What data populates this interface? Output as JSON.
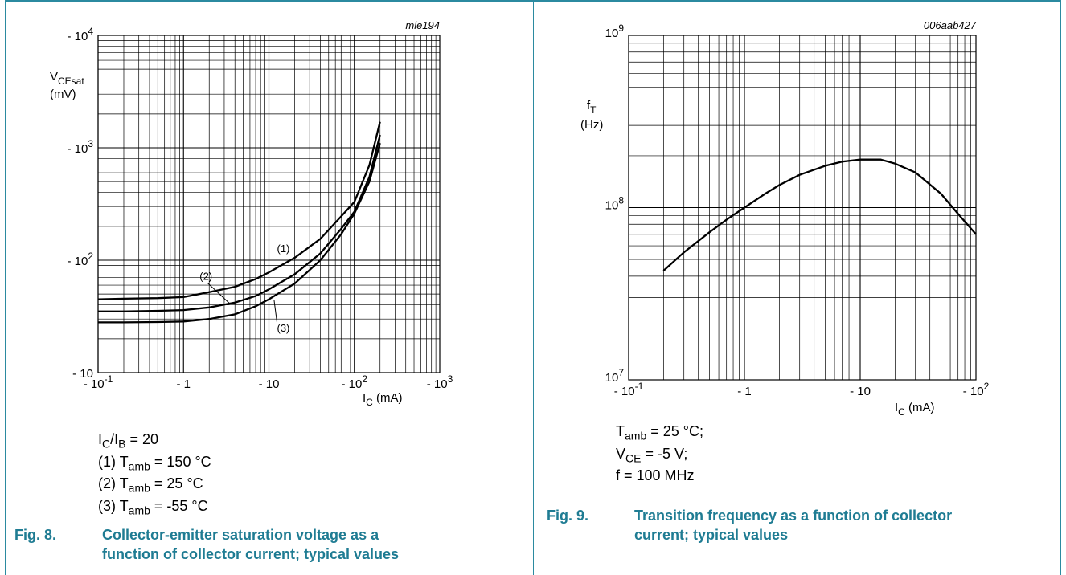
{
  "chart_data": [
    {
      "type": "line",
      "code": "mle194",
      "x_scale": "log",
      "y_scale": "log",
      "xlim": [
        -0.1,
        -1000
      ],
      "ylim": [
        -10,
        -10000
      ],
      "x_ticks": [
        {
          "base": "- 10",
          "exp": "-1"
        },
        {
          "base": "- 1",
          "exp": ""
        },
        {
          "base": "- 10",
          "exp": ""
        },
        {
          "base": "- 10",
          "exp": "2"
        },
        {
          "base": "- 10",
          "exp": "3"
        }
      ],
      "y_ticks": [
        {
          "base": "- 10",
          "exp": ""
        },
        {
          "base": "- 10",
          "exp": "2"
        },
        {
          "base": "- 10",
          "exp": "3"
        },
        {
          "base": "- 10",
          "exp": "4"
        }
      ],
      "ylabel": {
        "main": "V",
        "sub": "CEsat",
        "unit": "(mV)"
      },
      "xlabel": {
        "main": "I",
        "sub": "C",
        "unit": " (mA)"
      },
      "series": [
        {
          "name": "(1)",
          "x": [
            -0.1,
            -0.2,
            -0.5,
            -1,
            -2,
            -4,
            -7,
            -10,
            -20,
            -40,
            -70,
            -100,
            -150,
            -200
          ],
          "y": [
            -45,
            -45.5,
            -46,
            -47,
            -52,
            -58,
            -68,
            -78,
            -105,
            -155,
            -245,
            -330,
            -700,
            -1700
          ]
        },
        {
          "name": "(2)",
          "x": [
            -0.1,
            -0.2,
            -0.5,
            -1,
            -2,
            -4,
            -7,
            -10,
            -20,
            -40,
            -70,
            -100,
            -150,
            -200
          ],
          "y": [
            -35,
            -35,
            -35.5,
            -36,
            -38,
            -42,
            -48,
            -55,
            -75,
            -115,
            -190,
            -270,
            -550,
            -1300
          ]
        },
        {
          "name": "(3)",
          "x": [
            -0.1,
            -0.2,
            -0.5,
            -1,
            -2,
            -4,
            -7,
            -10,
            -20,
            -40,
            -70,
            -100,
            -150,
            -200
          ],
          "y": [
            -28,
            -28,
            -28.2,
            -28.5,
            -30,
            -33,
            -39,
            -45,
            -62,
            -100,
            -170,
            -260,
            -500,
            -1100
          ]
        }
      ],
      "conditions": [
        {
          "pre": "I",
          "sub": "C",
          "mid": "/I",
          "sub2": "B",
          "post": " = 20"
        },
        {
          "pre": "(1) T",
          "sub": "amb",
          "mid": "",
          "sub2": "",
          "post": " = 150 °C"
        },
        {
          "pre": "(2) T",
          "sub": "amb",
          "mid": "",
          "sub2": "",
          "post": " = 25 °C"
        },
        {
          "pre": "(3) T",
          "sub": "amb",
          "mid": "",
          "sub2": "",
          "post": " = -55 °C"
        }
      ],
      "caption_num": "Fig. 8.",
      "caption_line1": "Collector-emitter saturation voltage as a",
      "caption_line2": "function of collector current; typical values"
    },
    {
      "type": "line",
      "code": "006aab427",
      "x_scale": "log",
      "y_scale": "log",
      "xlim": [
        -0.1,
        -100
      ],
      "ylim": [
        10000000,
        1000000000
      ],
      "x_ticks": [
        {
          "base": "- 10",
          "exp": "-1"
        },
        {
          "base": "- 1",
          "exp": ""
        },
        {
          "base": "- 10",
          "exp": ""
        },
        {
          "base": "- 10",
          "exp": "2"
        }
      ],
      "y_ticks": [
        {
          "base": "10",
          "exp": "7"
        },
        {
          "base": "10",
          "exp": "8"
        },
        {
          "base": "10",
          "exp": "9"
        }
      ],
      "ylabel": {
        "main": "f",
        "sub": "T",
        "unit": "(Hz)"
      },
      "xlabel": {
        "main": "I",
        "sub": "C",
        "unit": " (mA)"
      },
      "series": [
        {
          "x": [
            -0.2,
            -0.3,
            -0.5,
            -0.7,
            -1,
            -1.5,
            -2,
            -3,
            -5,
            -7,
            -10,
            -15,
            -20,
            -30,
            -50,
            -70,
            -100
          ],
          "y": [
            43000000,
            55000000,
            72000000,
            85000000,
            100000000,
            120000000,
            135000000,
            155000000,
            175000000,
            185000000,
            190000000,
            190000000,
            180000000,
            160000000,
            120000000,
            92000000,
            70000000
          ]
        }
      ],
      "conditions": [
        {
          "pre": "T",
          "sub": "amb",
          "mid": "",
          "sub2": "",
          "post": " = 25 °C;"
        },
        {
          "pre": "V",
          "sub": "CE",
          "mid": "",
          "sub2": "",
          "post": " = -5 V;"
        },
        {
          "pre": "f = 100 MHz",
          "sub": "",
          "mid": "",
          "sub2": "",
          "post": ""
        }
      ],
      "caption_num": "Fig. 9.",
      "caption_line1": "Transition frequency as a function of collector",
      "caption_line2": "current; typical values"
    }
  ],
  "colors": {
    "caption": "#1f7c93",
    "frame": "#2b8aa0",
    "grid": "#000000"
  }
}
